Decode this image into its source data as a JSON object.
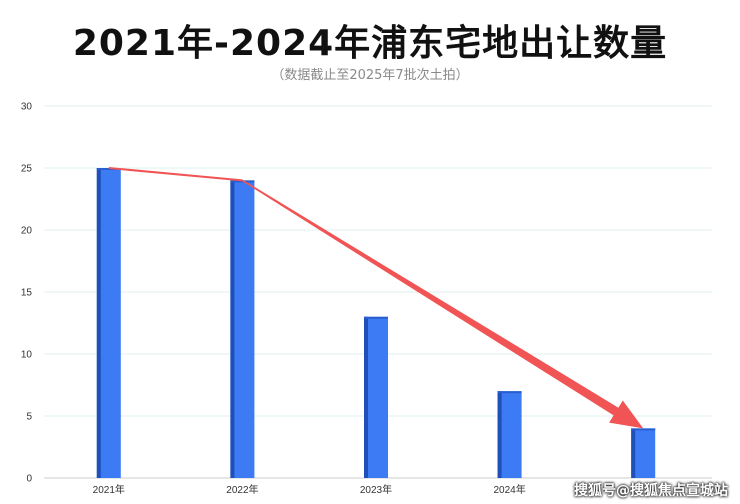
{
  "chart_data": {
    "type": "bar",
    "title": "2021年-2024年浦东宅地出让数量",
    "subtitle": "（数据截止至2025年7批次土拍）",
    "categories": [
      "2021年",
      "2022年",
      "2023年",
      "2024年",
      ""
    ],
    "values": [
      25,
      24,
      13,
      7,
      4
    ],
    "ylim": [
      0,
      30
    ],
    "yticks": [
      0,
      5,
      10,
      15,
      20,
      25,
      30
    ],
    "grid": true,
    "bar_color": "#3d7bf5",
    "bar_shade_color": "#1f4fb8",
    "trend_arrow_color": "#f05454",
    "grid_color": "#dff0ec"
  },
  "watermark": "搜狐号@搜狐焦点宣城站"
}
